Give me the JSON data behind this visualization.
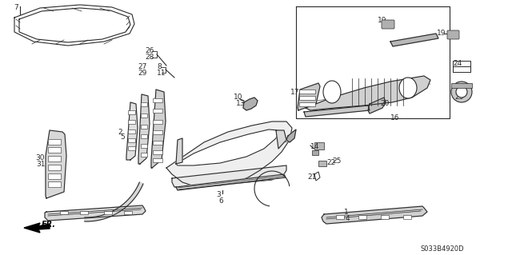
{
  "bg_color": "#ffffff",
  "line_color": "#2a2a2a",
  "diagram_code": "S033B4920D",
  "fs": 6.5
}
